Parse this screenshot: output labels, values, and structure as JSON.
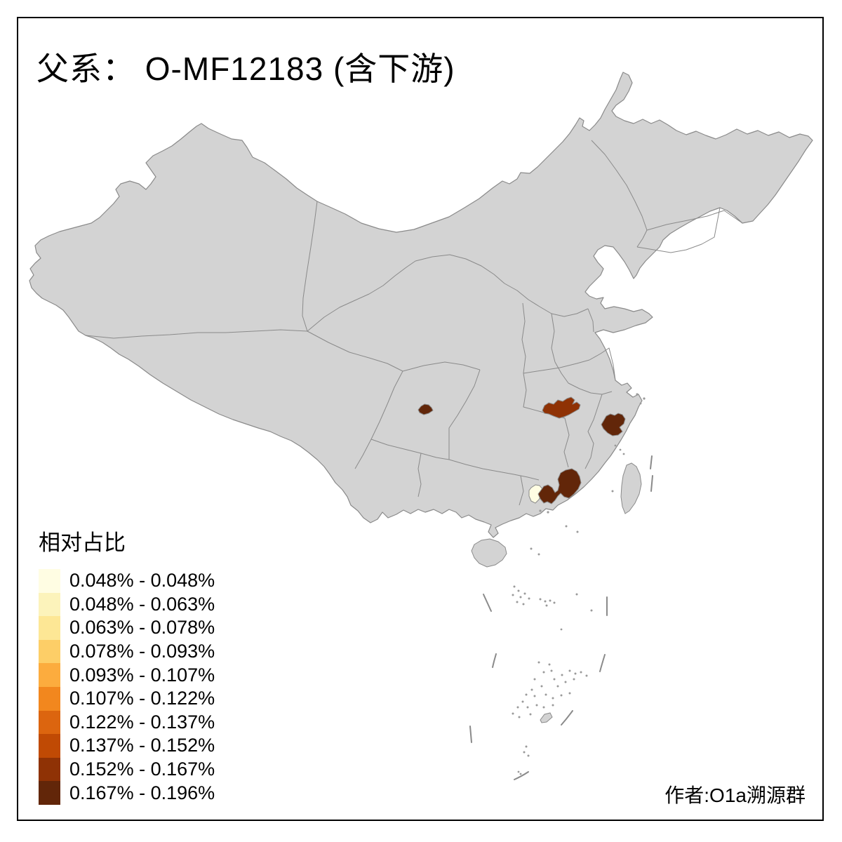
{
  "title": "父系： O-MF12183 (含下游)",
  "legend": {
    "title": "相对占比",
    "items": [
      {
        "label": "0.048% - 0.048%",
        "color": "#FFFDE3"
      },
      {
        "label": "0.048% - 0.063%",
        "color": "#FCF3BB"
      },
      {
        "label": "0.063% - 0.078%",
        "color": "#FDE795"
      },
      {
        "label": "0.078% - 0.093%",
        "color": "#FDCE67"
      },
      {
        "label": "0.093% - 0.107%",
        "color": "#FCAC3E"
      },
      {
        "label": "0.107% - 0.122%",
        "color": "#F2871E"
      },
      {
        "label": "0.122% - 0.137%",
        "color": "#DC650F"
      },
      {
        "label": "0.137% - 0.152%",
        "color": "#C04A04"
      },
      {
        "label": "0.152% - 0.167%",
        "color": "#8F3205"
      },
      {
        "label": "0.167% - 0.196%",
        "color": "#622609"
      }
    ]
  },
  "attribution": "作者:O1a溯源群",
  "map": {
    "background": "#FFFFFF",
    "frame_color": "#000000",
    "base_fill": "#D3D3D3",
    "border_color": "#8A8A8A",
    "regions": [
      {
        "id": "chongqing-area",
        "bin": "0.167% - 0.196%",
        "color": "#622609"
      },
      {
        "id": "hubei-area",
        "bin": "0.152% - 0.167%",
        "color": "#8F3205"
      },
      {
        "id": "zhejiang-area",
        "bin": "0.167% - 0.196%",
        "color": "#622609"
      },
      {
        "id": "east-guangdong-area",
        "bin": "0.167% - 0.196%",
        "color": "#622609"
      },
      {
        "id": "pearl-delta-area",
        "bin": "0.048% - 0.048%",
        "color": "#FFFDE3"
      }
    ]
  }
}
